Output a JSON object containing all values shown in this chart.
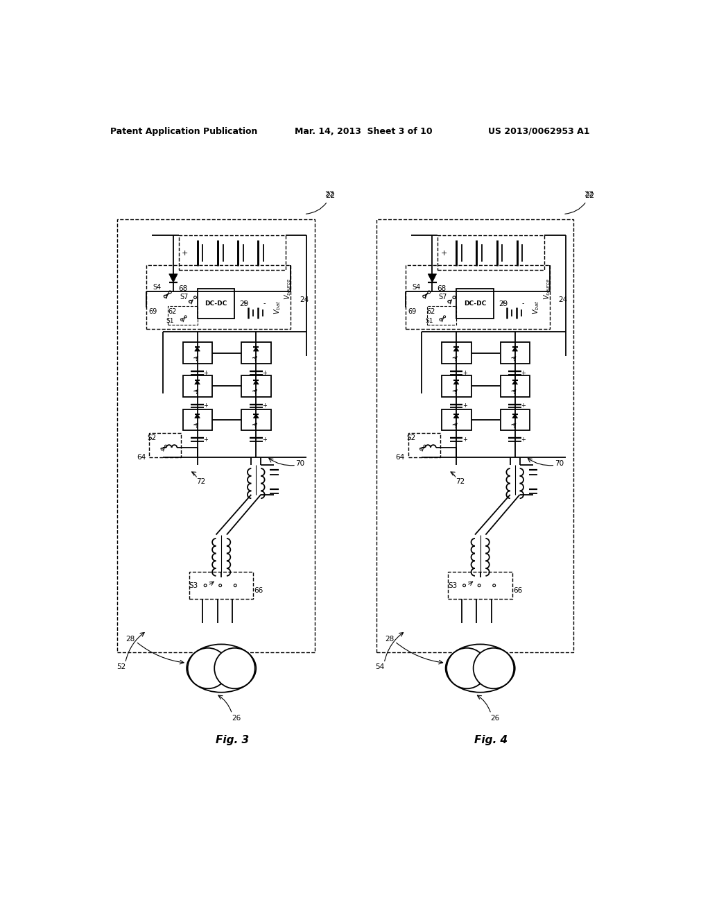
{
  "title_left": "Patent Application Publication",
  "title_mid": "Mar. 14, 2013  Sheet 3 of 10",
  "title_right": "US 2013/0062953 A1",
  "bg_color": "#ffffff",
  "line_color": "#000000",
  "lw": 1.3
}
